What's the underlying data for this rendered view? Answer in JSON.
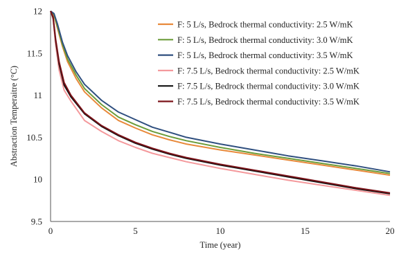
{
  "chart_data": {
    "type": "line",
    "xlabel": "Time (year)",
    "ylabel": "Abstraction Temperaitre (°C)",
    "xlim": [
      0,
      20
    ],
    "ylim": [
      9.5,
      12
    ],
    "xticks": [
      "0",
      "5",
      "10",
      "15",
      "20"
    ],
    "yticks": [
      "9.5",
      "10",
      "10.5",
      "11",
      "11.5",
      "12"
    ],
    "grid": false,
    "legend_position": "top-right",
    "series": [
      {
        "name": "F: 5 L/s, Bedrock thermal conductivity: 2.5 W/mK",
        "color": "#E8893A",
        "points": [
          [
            0,
            12
          ],
          [
            0.2,
            11.95
          ],
          [
            0.4,
            11.8
          ],
          [
            0.7,
            11.58
          ],
          [
            1,
            11.4
          ],
          [
            1.5,
            11.2
          ],
          [
            2,
            11.04
          ],
          [
            3,
            10.85
          ],
          [
            4,
            10.7
          ],
          [
            5,
            10.61
          ],
          [
            6,
            10.53
          ],
          [
            7,
            10.47
          ],
          [
            8,
            10.42
          ],
          [
            10,
            10.35
          ],
          [
            12,
            10.29
          ],
          [
            14,
            10.23
          ],
          [
            16,
            10.17
          ],
          [
            18,
            10.11
          ],
          [
            20,
            10.05
          ]
        ]
      },
      {
        "name": "F: 5 L/s, Bedrock thermal conductivity: 3.0 W/mK",
        "color": "#6C9C3A",
        "points": [
          [
            0,
            12
          ],
          [
            0.2,
            11.96
          ],
          [
            0.4,
            11.82
          ],
          [
            0.7,
            11.6
          ],
          [
            1,
            11.43
          ],
          [
            1.5,
            11.24
          ],
          [
            2,
            11.08
          ],
          [
            3,
            10.89
          ],
          [
            4,
            10.74
          ],
          [
            5,
            10.65
          ],
          [
            6,
            10.57
          ],
          [
            7,
            10.51
          ],
          [
            8,
            10.46
          ],
          [
            10,
            10.38
          ],
          [
            12,
            10.31
          ],
          [
            14,
            10.25
          ],
          [
            16,
            10.19
          ],
          [
            18,
            10.13
          ],
          [
            20,
            10.07
          ]
        ]
      },
      {
        "name": "F: 5 L/s, Bedrock thermal conductivity: 3.5 W/mK",
        "color": "#2F4F7F",
        "points": [
          [
            0,
            12
          ],
          [
            0.2,
            11.97
          ],
          [
            0.4,
            11.85
          ],
          [
            0.7,
            11.63
          ],
          [
            1,
            11.47
          ],
          [
            1.5,
            11.28
          ],
          [
            2,
            11.13
          ],
          [
            3,
            10.94
          ],
          [
            4,
            10.8
          ],
          [
            5,
            10.71
          ],
          [
            6,
            10.62
          ],
          [
            7,
            10.56
          ],
          [
            8,
            10.5
          ],
          [
            10,
            10.42
          ],
          [
            12,
            10.35
          ],
          [
            14,
            10.28
          ],
          [
            16,
            10.22
          ],
          [
            18,
            10.16
          ],
          [
            20,
            10.09
          ]
        ]
      },
      {
        "name": "F: 7.5 L/s, Bedrock thermal conductivity: 2.5 W/mK",
        "color": "#F4999C",
        "points": [
          [
            0,
            12
          ],
          [
            0.15,
            11.9
          ],
          [
            0.3,
            11.6
          ],
          [
            0.5,
            11.3
          ],
          [
            0.8,
            11.06
          ],
          [
            1.2,
            10.93
          ],
          [
            2,
            10.7
          ],
          [
            3,
            10.57
          ],
          [
            4,
            10.46
          ],
          [
            5,
            10.38
          ],
          [
            6,
            10.31
          ],
          [
            7,
            10.26
          ],
          [
            8,
            10.21
          ],
          [
            10,
            10.13
          ],
          [
            12,
            10.06
          ],
          [
            14,
            9.99
          ],
          [
            16,
            9.93
          ],
          [
            18,
            9.87
          ],
          [
            20,
            9.81
          ]
        ]
      },
      {
        "name": "F: 7.5 L/s, Bedrock thermal conductivity: 3.0 W/mK",
        "color": "#111111",
        "points": [
          [
            0,
            12
          ],
          [
            0.15,
            11.92
          ],
          [
            0.3,
            11.65
          ],
          [
            0.5,
            11.37
          ],
          [
            0.8,
            11.12
          ],
          [
            1.2,
            10.98
          ],
          [
            2,
            10.78
          ],
          [
            3,
            10.63
          ],
          [
            4,
            10.52
          ],
          [
            5,
            10.43
          ],
          [
            6,
            10.36
          ],
          [
            7,
            10.3
          ],
          [
            8,
            10.25
          ],
          [
            10,
            10.17
          ],
          [
            12,
            10.1
          ],
          [
            14,
            10.03
          ],
          [
            16,
            9.96
          ],
          [
            18,
            9.89
          ],
          [
            20,
            9.83
          ]
        ]
      },
      {
        "name": "F: 7.5 L/s, Bedrock thermal conductivity: 3.5 W/mK",
        "color": "#7A1218",
        "points": [
          [
            0,
            12
          ],
          [
            0.15,
            11.93
          ],
          [
            0.3,
            11.67
          ],
          [
            0.5,
            11.4
          ],
          [
            0.8,
            11.15
          ],
          [
            1.2,
            11.0
          ],
          [
            2,
            10.79
          ],
          [
            3,
            10.64
          ],
          [
            4,
            10.53
          ],
          [
            5,
            10.44
          ],
          [
            6,
            10.37
          ],
          [
            7,
            10.31
          ],
          [
            8,
            10.26
          ],
          [
            10,
            10.18
          ],
          [
            12,
            10.11
          ],
          [
            14,
            10.04
          ],
          [
            16,
            9.97
          ],
          [
            18,
            9.9
          ],
          [
            20,
            9.84
          ]
        ]
      }
    ]
  }
}
